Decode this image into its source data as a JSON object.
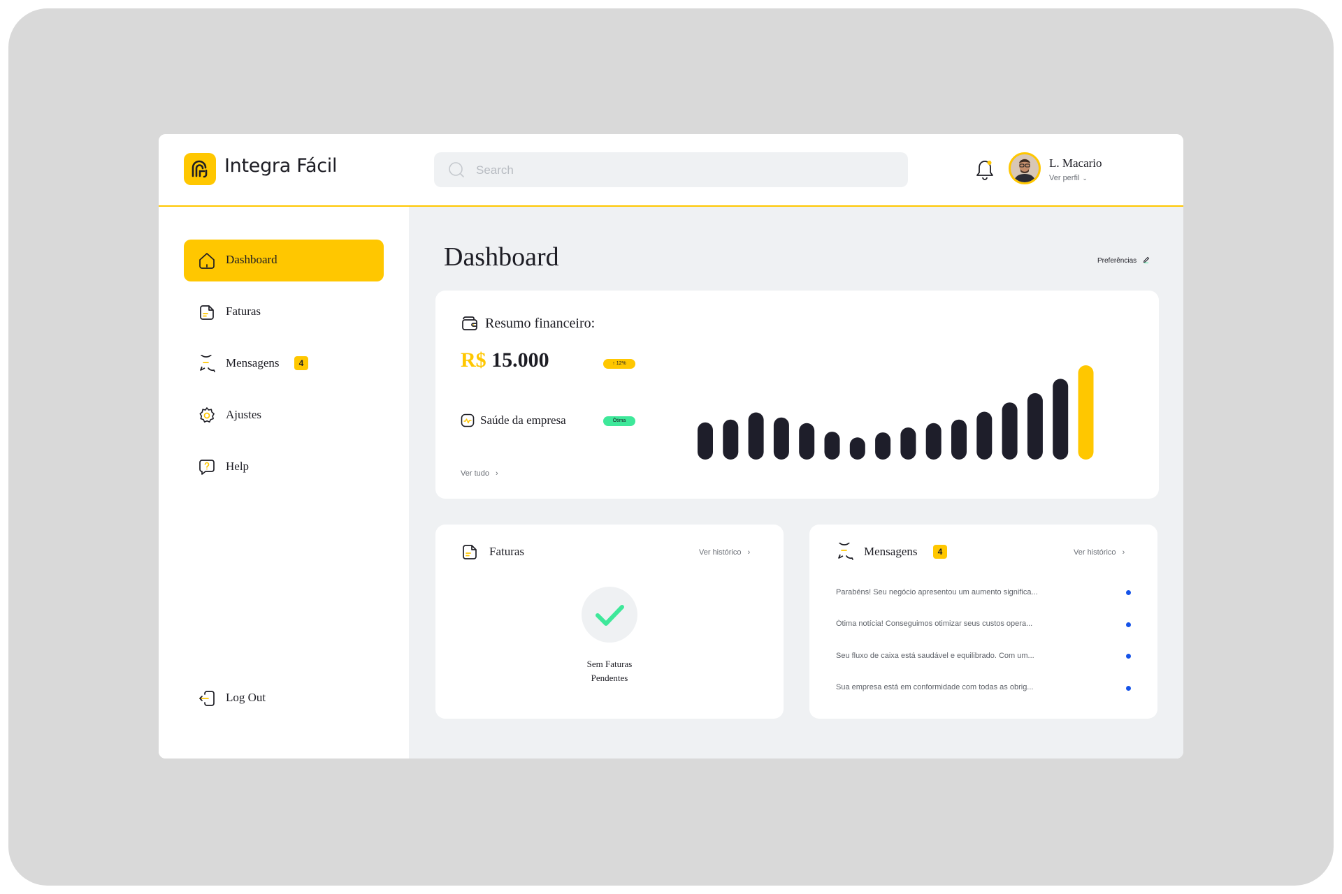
{
  "app": {
    "brand": "Integra Fácil"
  },
  "search": {
    "placeholder": "Search"
  },
  "user": {
    "name": "L. Macario",
    "profile_link": "Ver perfil"
  },
  "sidebar": {
    "items": [
      {
        "label": "Dashboard",
        "icon": "home-icon",
        "active": true
      },
      {
        "label": "Faturas",
        "icon": "invoice-icon"
      },
      {
        "label": "Mensagens",
        "icon": "chat-icon",
        "badge": "4"
      },
      {
        "label": "Ajustes",
        "icon": "gear-icon"
      },
      {
        "label": "Help",
        "icon": "help-icon"
      }
    ],
    "logout": "Log Out"
  },
  "page": {
    "title": "Dashboard",
    "preferences": "Preferências"
  },
  "summary": {
    "title": "Resumo financeiro:",
    "currency": "R$",
    "amount": "15.000",
    "growth": "↑ 12%",
    "health_label": "Saúde da empresa",
    "health_status": "Ótima",
    "see_all": "Ver tudo"
  },
  "chart_data": {
    "type": "bar",
    "values": [
      52,
      56,
      66,
      59,
      51,
      39,
      31,
      38,
      45,
      51,
      56,
      67,
      80,
      93,
      113,
      132
    ],
    "highlight_index": 15,
    "colors": {
      "bar": "#1e1e2a",
      "highlight": "#ffc700"
    }
  },
  "invoices": {
    "title": "Faturas",
    "history_link": "Ver histórico",
    "empty_line1": "Sem Faturas",
    "empty_line2": "Pendentes"
  },
  "messages": {
    "title": "Mensagens",
    "badge": "4",
    "history_link": "Ver histórico",
    "items": [
      "Parabéns! Seu negócio apresentou um aumento significa...",
      "Ótima notícia! Conseguimos otimizar seus custos opera...",
      "Seu fluxo de caixa está saudável e equilibrado. Com um...",
      "Sua empresa está em conformidade com todas as obrig..."
    ]
  },
  "colors": {
    "accent": "#ffc700",
    "dark": "#1d1d24",
    "success": "#3ee89a",
    "unread_dot": "#1553e8",
    "background": "#eff1f3"
  }
}
